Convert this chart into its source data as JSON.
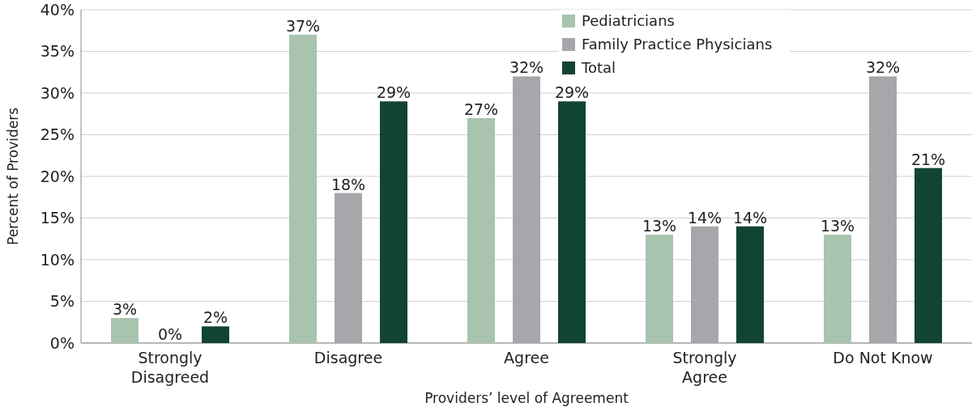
{
  "chart_data": {
    "type": "bar",
    "xlabel": "Providers’ level of Agreement",
    "ylabel": "Percent of Providers",
    "categories": [
      "Strongly Disagreed",
      "Disagree",
      "Agree",
      "Strongly Agree",
      "Do Not Know"
    ],
    "series": [
      {
        "name": "Pediatricians",
        "color": "#a8c3ae",
        "values": [
          3,
          37,
          27,
          13,
          13
        ],
        "value_labels": [
          "3%",
          "37%",
          "27%",
          "13%",
          "13%"
        ]
      },
      {
        "name": "Family Practice Physicians",
        "color": "#a7a7ab",
        "values": [
          0,
          18,
          32,
          14,
          32
        ],
        "value_labels": [
          "0%",
          "18%",
          "32%",
          "14%",
          "32%"
        ]
      },
      {
        "name": "Total",
        "color": "#124434",
        "values": [
          2,
          29,
          29,
          14,
          21
        ],
        "value_labels": [
          "2%",
          "29%",
          "29%",
          "14%",
          "21%"
        ]
      }
    ],
    "ylim": [
      0,
      40
    ],
    "yticks": [
      {
        "value": 0,
        "label": "0%"
      },
      {
        "value": 5,
        "label": "5%"
      },
      {
        "value": 10,
        "label": "10%"
      },
      {
        "value": 15,
        "label": "15%"
      },
      {
        "value": 20,
        "label": "20%"
      },
      {
        "value": 25,
        "label": "25%"
      },
      {
        "value": 30,
        "label": "30%"
      },
      {
        "value": 35,
        "label": "35%"
      },
      {
        "value": 40,
        "label": "40%"
      }
    ],
    "grid": "y",
    "legend": "top right"
  }
}
